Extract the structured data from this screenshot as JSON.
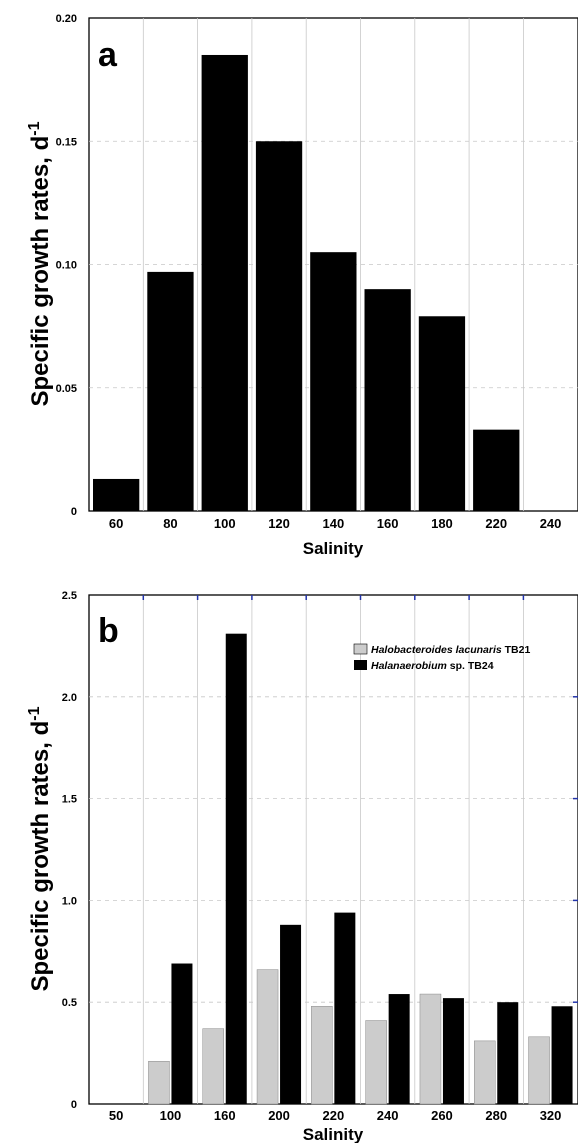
{
  "chart_data": [
    {
      "panel": "a",
      "type": "bar",
      "xlabel": "Salinity",
      "ylabel": "Specific growth rates, d",
      "ylabel_sup": "-1",
      "categories": [
        "60",
        "80",
        "100",
        "120",
        "140",
        "160",
        "180",
        "220",
        "240"
      ],
      "values": [
        0.013,
        0.097,
        0.185,
        0.15,
        0.105,
        0.09,
        0.079,
        0.033,
        0
      ],
      "ylim": [
        0,
        0.2
      ],
      "yticks": [
        "0",
        "0.05",
        "0.10",
        "0.15",
        "0.20"
      ],
      "ytick_values": [
        0,
        0.05,
        0.1,
        0.15,
        0.2
      ],
      "bar_color": "#000000",
      "grid": true
    },
    {
      "panel": "b",
      "type": "bar",
      "xlabel": "Salinity",
      "ylabel": "Specific growth rates, d",
      "ylabel_sup": "-1",
      "categories": [
        "50",
        "100",
        "160",
        "200",
        "220",
        "240",
        "260",
        "280",
        "320"
      ],
      "series": [
        {
          "name_italic": "Halobacteroides lacunaris",
          "name_rest": " TB21",
          "color": "#cccccc",
          "values": [
            0,
            0.21,
            0.37,
            0.66,
            0.48,
            0.41,
            0.54,
            0.31,
            0.33
          ]
        },
        {
          "name_italic": "Halanaerobium",
          "name_rest": " sp. TB24",
          "color": "#000000",
          "values": [
            0,
            0.69,
            2.31,
            0.88,
            0.94,
            0.54,
            0.52,
            0.5,
            0.48
          ]
        }
      ],
      "ylim": [
        0,
        2.5
      ],
      "yticks": [
        "0",
        "0.5",
        "1.0",
        "1.5",
        "2.0",
        "2.5"
      ],
      "ytick_values": [
        0,
        0.5,
        1.0,
        1.5,
        2.0,
        2.5
      ],
      "legend_position": "top-right",
      "grid": true
    }
  ]
}
